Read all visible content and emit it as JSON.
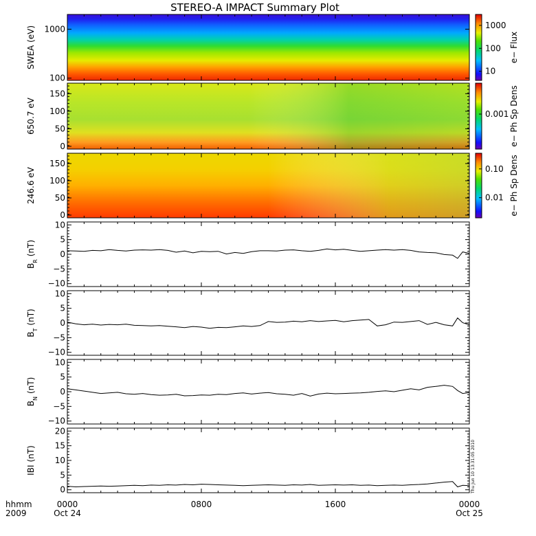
{
  "title": "STEREO-A IMPACT Summary Plot",
  "stamp": "Thu Jun 10 13:31:05 2010",
  "time_axis": {
    "row1_label": "hhmm",
    "row2_label": "2009",
    "ticks": [
      {
        "t": 0,
        "label": "0000",
        "date": "Oct 24"
      },
      {
        "t": 8,
        "label": "0800",
        "date": ""
      },
      {
        "t": 16,
        "label": "1600",
        "date": ""
      },
      {
        "t": 24,
        "label": "0000",
        "date": "Oct 25"
      }
    ]
  },
  "chart_data": [
    {
      "type": "heatmap",
      "id": "swea",
      "ylabel": "SWEA (eV)",
      "y_scale": "log",
      "ylim": [
        90,
        2000
      ],
      "yticks": [
        {
          "v": 100,
          "label": "100"
        },
        {
          "v": 1000,
          "label": "1000"
        }
      ],
      "xlim": [
        0,
        24
      ],
      "colorbar": {
        "label": "e− Flux",
        "scale": "log",
        "range": [
          4,
          3000
        ],
        "ticks": [
          {
            "v": 10,
            "label": "10"
          },
          {
            "v": 100,
            "label": "100"
          },
          {
            "v": 1000,
            "label": "1000"
          }
        ]
      }
    },
    {
      "type": "heatmap",
      "id": "pad650",
      "ylabel": "650.7 eV",
      "ylim": [
        -8,
        180
      ],
      "yticks": [
        {
          "v": 0,
          "label": "0"
        },
        {
          "v": 50,
          "label": "50"
        },
        {
          "v": 100,
          "label": "100"
        },
        {
          "v": 150,
          "label": "150"
        }
      ],
      "xlim": [
        0,
        24
      ],
      "colorbar": {
        "label": "e− Ph Sp Dens",
        "scale": "log",
        "range": [
          6e-05,
          0.012
        ],
        "ticks": [
          {
            "v": 0.001,
            "label": "0.001"
          }
        ]
      }
    },
    {
      "type": "heatmap",
      "id": "pad246",
      "ylabel": "246.6 eV",
      "ylim": [
        -8,
        180
      ],
      "yticks": [
        {
          "v": 0,
          "label": "0"
        },
        {
          "v": 50,
          "label": "50"
        },
        {
          "v": 100,
          "label": "100"
        },
        {
          "v": 150,
          "label": "150"
        }
      ],
      "xlim": [
        0,
        24
      ],
      "colorbar": {
        "label": "e− Ph Sp Dens",
        "scale": "log",
        "range": [
          0.002,
          0.35
        ],
        "ticks": [
          {
            "v": 0.01,
            "label": "0.01"
          },
          {
            "v": 0.1,
            "label": "0.10"
          }
        ]
      }
    },
    {
      "type": "line",
      "id": "br",
      "ylabel_main": "B",
      "ylabel_sub": "R",
      "ylabel_unit": "(nT)",
      "ylim": [
        -11,
        11
      ],
      "xlim": [
        0,
        24
      ],
      "yticks": [
        {
          "v": -10,
          "label": "−10"
        },
        {
          "v": -5,
          "label": "−5"
        },
        {
          "v": 0,
          "label": "0"
        },
        {
          "v": 5,
          "label": "5"
        },
        {
          "v": 10,
          "label": "10"
        }
      ],
      "x": [
        0,
        0.5,
        1,
        1.5,
        2,
        2.5,
        3,
        3.5,
        4,
        4.5,
        5,
        5.5,
        6,
        6.5,
        7,
        7.5,
        8,
        8.5,
        9,
        9.5,
        10,
        10.5,
        11,
        11.5,
        12,
        12.5,
        13,
        13.5,
        14,
        14.5,
        15,
        15.5,
        16,
        16.5,
        17,
        17.5,
        18,
        18.5,
        19,
        19.5,
        20,
        20.5,
        21,
        21.5,
        22,
        22.5,
        23,
        23.3,
        23.6,
        24
      ],
      "values": [
        1.2,
        1.1,
        1.0,
        1.3,
        1.2,
        1.6,
        1.3,
        1.1,
        1.4,
        1.5,
        1.4,
        1.6,
        1.3,
        0.7,
        1.1,
        0.5,
        1.0,
        0.9,
        1.0,
        0.1,
        0.6,
        0.3,
        0.9,
        1.2,
        1.2,
        1.1,
        1.4,
        1.5,
        1.2,
        1.0,
        1.3,
        1.8,
        1.5,
        1.7,
        1.3,
        1.0,
        1.2,
        1.4,
        1.6,
        1.4,
        1.6,
        1.3,
        0.8,
        0.6,
        0.5,
        -0.1,
        -0.3,
        -1.4,
        0.8,
        0.3
      ]
    },
    {
      "type": "line",
      "id": "bt",
      "ylabel_main": "B",
      "ylabel_sub": "T",
      "ylabel_unit": "(nT)",
      "ylim": [
        -11,
        11
      ],
      "xlim": [
        0,
        24
      ],
      "yticks": [
        {
          "v": -10,
          "label": "−10"
        },
        {
          "v": -5,
          "label": "−5"
        },
        {
          "v": 0,
          "label": "0"
        },
        {
          "v": 5,
          "label": "5"
        },
        {
          "v": 10,
          "label": "10"
        }
      ],
      "x": [
        0,
        0.5,
        1,
        1.5,
        2,
        2.5,
        3,
        3.5,
        4,
        4.5,
        5,
        5.5,
        6,
        6.5,
        7,
        7.5,
        8,
        8.5,
        9,
        9.5,
        10,
        10.5,
        11,
        11.5,
        12,
        12.5,
        13,
        13.5,
        14,
        14.5,
        15,
        15.5,
        16,
        16.5,
        17,
        17.5,
        18,
        18.5,
        19,
        19.5,
        20,
        20.5,
        21,
        21.5,
        22,
        22.5,
        23,
        23.3,
        23.6,
        24
      ],
      "values": [
        0.3,
        -0.3,
        -0.6,
        -0.4,
        -0.7,
        -0.5,
        -0.6,
        -0.4,
        -0.8,
        -0.9,
        -1.0,
        -0.9,
        -1.1,
        -1.3,
        -1.6,
        -1.2,
        -1.4,
        -1.8,
        -1.5,
        -1.6,
        -1.3,
        -1.0,
        -1.2,
        -0.9,
        0.5,
        0.2,
        0.3,
        0.6,
        0.4,
        0.8,
        0.5,
        0.7,
        0.9,
        0.4,
        0.8,
        1.0,
        1.2,
        -1.0,
        -0.6,
        0.3,
        0.2,
        0.5,
        0.8,
        -0.5,
        0.2,
        -0.6,
        -1.0,
        1.7,
        0.1,
        -0.6
      ]
    },
    {
      "type": "line",
      "id": "bn",
      "ylabel_main": "B",
      "ylabel_sub": "N",
      "ylabel_unit": "(nT)",
      "ylim": [
        -11,
        11
      ],
      "xlim": [
        0,
        24
      ],
      "yticks": [
        {
          "v": -10,
          "label": "−10"
        },
        {
          "v": -5,
          "label": "−5"
        },
        {
          "v": 0,
          "label": "0"
        },
        {
          "v": 5,
          "label": "5"
        },
        {
          "v": 10,
          "label": "10"
        }
      ],
      "x": [
        0,
        0.5,
        1,
        1.5,
        2,
        2.5,
        3,
        3.5,
        4,
        4.5,
        5,
        5.5,
        6,
        6.5,
        7,
        7.5,
        8,
        8.5,
        9,
        9.5,
        10,
        10.5,
        11,
        11.5,
        12,
        12.5,
        13,
        13.5,
        14,
        14.5,
        15,
        15.5,
        16,
        16.5,
        17,
        17.5,
        18,
        18.5,
        19,
        19.5,
        20,
        20.5,
        21,
        21.5,
        22,
        22.5,
        23,
        23.3,
        23.6,
        24
      ],
      "values": [
        1.0,
        0.6,
        0.2,
        -0.2,
        -0.6,
        -0.4,
        -0.2,
        -0.7,
        -0.9,
        -0.6,
        -1.0,
        -1.2,
        -1.1,
        -0.9,
        -1.4,
        -1.3,
        -1.1,
        -1.2,
        -0.9,
        -1.0,
        -0.6,
        -0.4,
        -0.8,
        -0.5,
        -0.3,
        -0.7,
        -0.9,
        -1.2,
        -0.6,
        -1.5,
        -0.8,
        -0.5,
        -0.7,
        -0.6,
        -0.5,
        -0.4,
        -0.2,
        0.1,
        0.3,
        0.0,
        0.5,
        1.0,
        0.6,
        1.5,
        1.8,
        2.2,
        1.8,
        0.4,
        -0.6,
        -0.3
      ]
    },
    {
      "type": "line",
      "id": "bmag",
      "ylabel_main": "IBI",
      "ylabel_sub": "",
      "ylabel_unit": "(nT)",
      "ylim": [
        -1,
        21
      ],
      "xlim": [
        0,
        24
      ],
      "yticks": [
        {
          "v": 0,
          "label": "0"
        },
        {
          "v": 5,
          "label": "5"
        },
        {
          "v": 10,
          "label": "10"
        },
        {
          "v": 15,
          "label": "15"
        },
        {
          "v": 20,
          "label": "20"
        }
      ],
      "x": [
        0,
        0.5,
        1,
        1.5,
        2,
        2.5,
        3,
        3.5,
        4,
        4.5,
        5,
        5.5,
        6,
        6.5,
        7,
        7.5,
        8,
        8.5,
        9,
        9.5,
        10,
        10.5,
        11,
        11.5,
        12,
        12.5,
        13,
        13.5,
        14,
        14.5,
        15,
        15.5,
        16,
        16.5,
        17,
        17.5,
        18,
        18.5,
        19,
        19.5,
        20,
        20.5,
        21,
        21.5,
        22,
        22.5,
        23,
        23.3,
        23.6,
        24
      ],
      "values": [
        1.2,
        1.0,
        1.1,
        1.2,
        1.3,
        1.2,
        1.3,
        1.4,
        1.5,
        1.4,
        1.6,
        1.5,
        1.7,
        1.6,
        1.8,
        1.7,
        1.9,
        1.8,
        1.7,
        1.6,
        1.5,
        1.4,
        1.5,
        1.6,
        1.7,
        1.6,
        1.5,
        1.7,
        1.6,
        1.8,
        1.5,
        1.6,
        1.7,
        1.6,
        1.7,
        1.5,
        1.6,
        1.4,
        1.5,
        1.6,
        1.5,
        1.7,
        1.8,
        2.0,
        2.3,
        2.6,
        2.8,
        1.0,
        1.5,
        1.4
      ]
    }
  ]
}
